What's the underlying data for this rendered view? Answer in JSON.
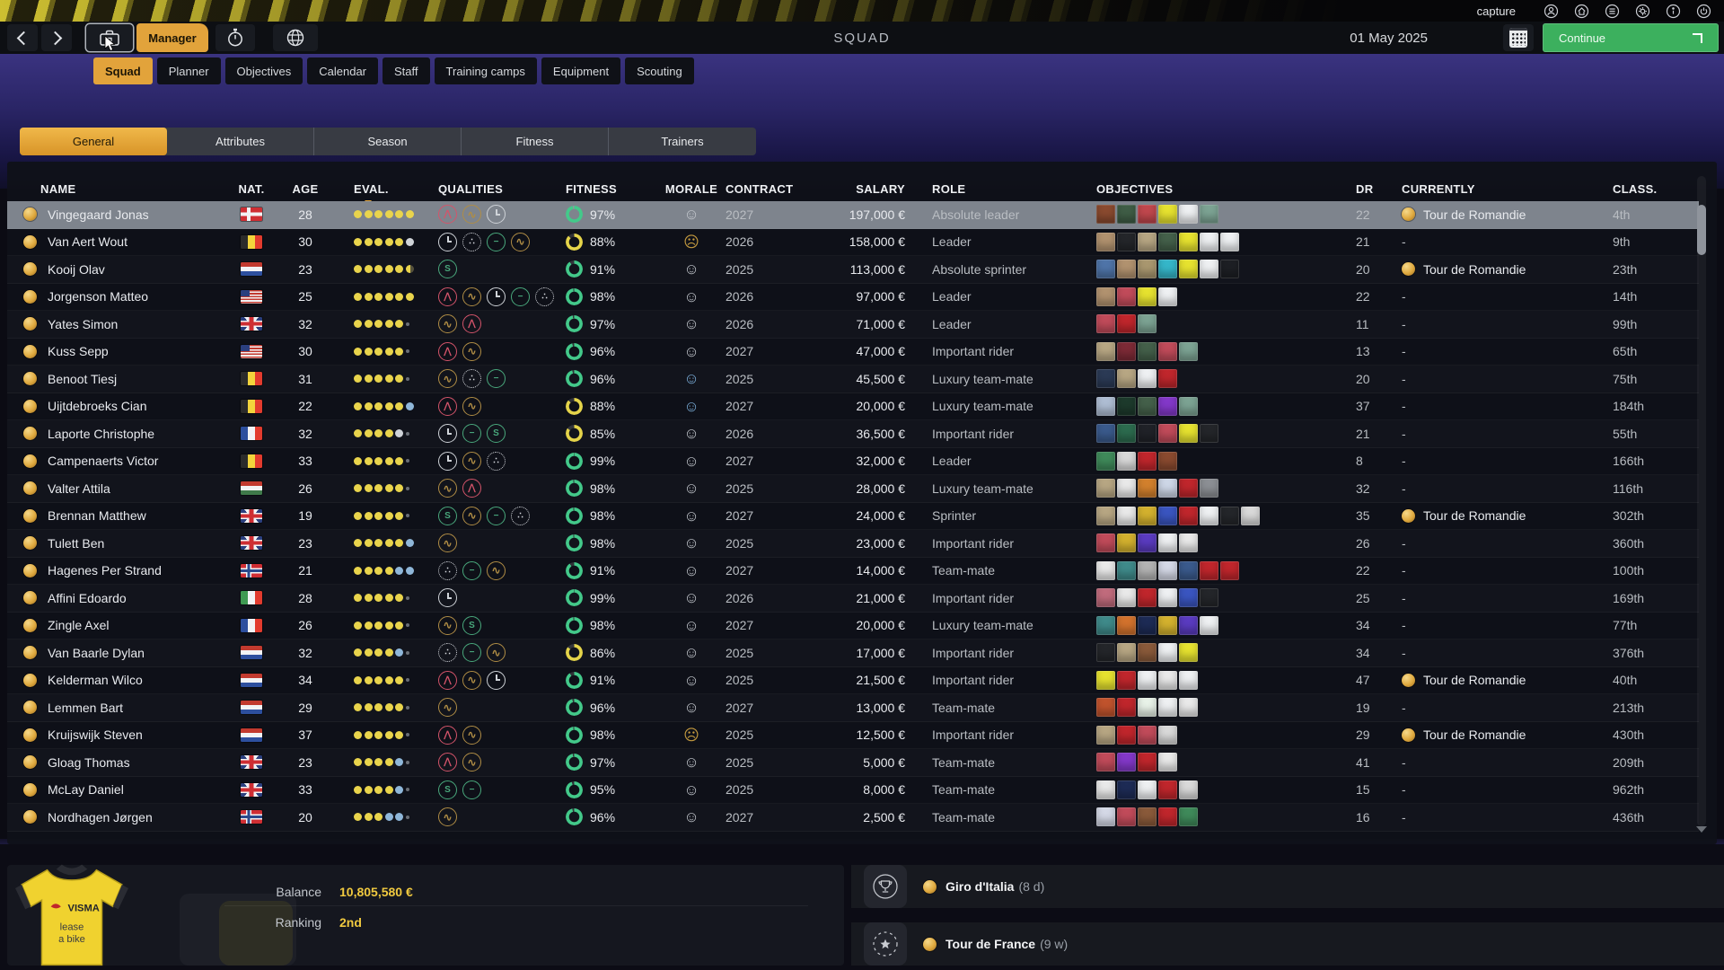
{
  "chrome": {
    "capture": "capture"
  },
  "navbar": {
    "title": "SQUAD",
    "manager": "Manager",
    "date": "01 May 2025",
    "continue_label": "Continue"
  },
  "system_icons": [
    "profile-icon",
    "home-icon",
    "menu-icon",
    "settings-icon",
    "info-icon",
    "power-icon"
  ],
  "tabs": {
    "items": [
      "Squad",
      "Planner",
      "Objectives",
      "Calendar",
      "Staff",
      "Training camps",
      "Equipment",
      "Scouting"
    ],
    "active": "Squad"
  },
  "subtabs": {
    "items": [
      "General",
      "Attributes",
      "Season",
      "Fitness",
      "Trainers"
    ],
    "active": "General"
  },
  "table": {
    "columns": [
      "NAME",
      "NAT.",
      "AGE",
      "EVAL.",
      "QUALITIES",
      "FITNESS",
      "MORALE",
      "CONTRACT",
      "SALARY",
      "ROLE",
      "OBJECTIVES",
      "DR",
      "CURRENTLY",
      "CLASS."
    ],
    "rows": [
      {
        "name": "Vingegaard Jonas",
        "nat": "dk",
        "age": 28,
        "ev": "yyyyyy",
        "q": [
          "mtn",
          "hill",
          "clock"
        ],
        "fit": 97,
        "mo": "s",
        "ct": "2027",
        "sal": "197,000 €",
        "role": "Absolute leader",
        "obj": [
          "#8a4a2f",
          "#3f5d46",
          "#c0474d",
          "#e6e22f",
          "#eef0f2",
          "#7ca393"
        ],
        "dr": 22,
        "cur": "Tour de Romandie",
        "cls": "4th",
        "sel": true
      },
      {
        "name": "Van Aert Wout",
        "nat": "be",
        "age": 30,
        "ev": "yyyyyw",
        "q": [
          "clock",
          "cob",
          "flat",
          "hill"
        ],
        "fit": 88,
        "mo": "f",
        "ct": "2026",
        "sal": "158,000 €",
        "role": "Leader",
        "obj": [
          "#b1926f",
          "#24262a",
          "#b7a683",
          "#44604a",
          "#e6e22f",
          "#eef0f2",
          "#eef0f2"
        ],
        "dr": 21,
        "cur": "-",
        "cls": "9th",
        "sel": false
      },
      {
        "name": "Kooij Olav",
        "nat": "nl",
        "age": 23,
        "ev": "yyyyyh",
        "q": [
          "spr"
        ],
        "fit": 91,
        "mo": "s",
        "ct": "2025",
        "sal": "113,000 €",
        "role": "Absolute sprinter",
        "obj": [
          "#4f74a8",
          "#b1926f",
          "#a9976f",
          "#35b6c9",
          "#e6e22f",
          "#eef0f2",
          "#1d1f24"
        ],
        "dr": 20,
        "cur": "Tour de Romandie",
        "cls": "23th",
        "sel": false
      },
      {
        "name": "Jorgenson Matteo",
        "nat": "us",
        "age": 25,
        "ev": "yyyyyy",
        "q": [
          "mtn",
          "hill",
          "clock",
          "flat",
          "cob"
        ],
        "fit": 98,
        "mo": "s",
        "ct": "2026",
        "sal": "97,000 €",
        "role": "Leader",
        "obj": [
          "#b1926f",
          "#c14b5a",
          "#e6e22f",
          "#eef0f2"
        ],
        "dr": 22,
        "cur": "-",
        "cls": "14th",
        "sel": false
      },
      {
        "name": "Yates Simon",
        "nat": "gb",
        "age": 32,
        "ev": "yyyyy.",
        "q": [
          "hill",
          "mtn"
        ],
        "fit": 97,
        "mo": "s",
        "ct": "2026",
        "sal": "71,000 €",
        "role": "Leader",
        "obj": [
          "#c14b5a",
          "#c0262c",
          "#7ca393"
        ],
        "dr": 11,
        "cur": "-",
        "cls": "99th",
        "sel": false
      },
      {
        "name": "Kuss Sepp",
        "nat": "us",
        "age": 30,
        "ev": "yyyyy.",
        "q": [
          "mtn",
          "hill"
        ],
        "fit": 96,
        "mo": "s",
        "ct": "2027",
        "sal": "47,000 €",
        "role": "Important rider",
        "obj": [
          "#b7a683",
          "#7d2a36",
          "#44604a",
          "#c14b5a",
          "#7ca393"
        ],
        "dr": 13,
        "cur": "-",
        "cls": "65th",
        "sel": false
      },
      {
        "name": "Benoot Tiesj",
        "nat": "be",
        "age": 31,
        "ev": "yyyyy.",
        "q": [
          "hill",
          "cob",
          "flat"
        ],
        "fit": 96,
        "mo": "b",
        "ct": "2025",
        "sal": "45,500 €",
        "role": "Luxury team-mate",
        "obj": [
          "#2b3a55",
          "#b7a683",
          "#eef0f2",
          "#c0262c"
        ],
        "dr": 20,
        "cur": "-",
        "cls": "75th",
        "sel": false
      },
      {
        "name": "Uijtdebroeks Cian",
        "nat": "be",
        "age": 22,
        "ev": "yyyyyb",
        "q": [
          "mtn",
          "hill"
        ],
        "fit": 88,
        "mo": "b",
        "ct": "2027",
        "sal": "20,000 €",
        "role": "Luxury team-mate",
        "obj": [
          "#aebdd3",
          "#1d3a2c",
          "#44604a",
          "#8338c9",
          "#7ca393"
        ],
        "dr": 37,
        "cur": "-",
        "cls": "184th",
        "sel": false
      },
      {
        "name": "Laporte Christophe",
        "nat": "fr",
        "age": 32,
        "ev": "yyyyw.",
        "q": [
          "clock",
          "flat",
          "spr"
        ],
        "fit": 85,
        "mo": "s",
        "ct": "2026",
        "sal": "36,500 €",
        "role": "Important rider",
        "obj": [
          "#3a5a8c",
          "#2c6b4e",
          "#202228",
          "#c14b5a",
          "#e6e22f",
          "#24262a"
        ],
        "dr": 21,
        "cur": "-",
        "cls": "55th",
        "sel": false
      },
      {
        "name": "Campenaerts Victor",
        "nat": "be",
        "age": 33,
        "ev": "yyyyy.",
        "q": [
          "clock",
          "hill",
          "cob"
        ],
        "fit": 99,
        "mo": "s",
        "ct": "2027",
        "sal": "32,000 €",
        "role": "Leader",
        "obj": [
          "#3f8a5a",
          "#d9d9d9",
          "#c0262c",
          "#8a4a2f"
        ],
        "dr": 8,
        "cur": "-",
        "cls": "166th",
        "sel": false
      },
      {
        "name": "Valter Attila",
        "nat": "hu",
        "age": 26,
        "ev": "yyyyy.",
        "q": [
          "hill",
          "mtn"
        ],
        "fit": 98,
        "mo": "s",
        "ct": "2025",
        "sal": "28,000 €",
        "role": "Luxury team-mate",
        "obj": [
          "#b7a683",
          "#e9e9e9",
          "#d2802d",
          "#cdd6e6",
          "#c0262c",
          "#8c8f94"
        ],
        "dr": 32,
        "cur": "-",
        "cls": "116th",
        "sel": false
      },
      {
        "name": "Brennan Matthew",
        "nat": "gb",
        "age": 19,
        "ev": "yyyyy.",
        "q": [
          "spr",
          "hill",
          "flat",
          "cob"
        ],
        "fit": 98,
        "mo": "s",
        "ct": "2027",
        "sal": "24,000 €",
        "role": "Sprinter",
        "obj": [
          "#b7a683",
          "#e9e9e9",
          "#d3b12e",
          "#3a55c0",
          "#c0262c",
          "#eef0f2",
          "#24262a",
          "#d9d9d9"
        ],
        "dr": 35,
        "cur": "Tour de Romandie",
        "cls": "302th",
        "sel": false
      },
      {
        "name": "Tulett Ben",
        "nat": "gb",
        "age": 23,
        "ev": "yyyyyb",
        "q": [
          "hill"
        ],
        "fit": 98,
        "mo": "s",
        "ct": "2025",
        "sal": "23,000 €",
        "role": "Important rider",
        "obj": [
          "#c14b5a",
          "#d3b12e",
          "#5a3bc0",
          "#eef0f2",
          "#e9e9e9"
        ],
        "dr": 26,
        "cur": "-",
        "cls": "360th",
        "sel": false
      },
      {
        "name": "Hagenes Per Strand",
        "nat": "no",
        "age": 21,
        "ev": "yyyybb",
        "q": [
          "cob",
          "flat",
          "hill"
        ],
        "fit": 91,
        "mo": "s",
        "ct": "2027",
        "sal": "14,000 €",
        "role": "Team-mate",
        "obj": [
          "#e9e9e9",
          "#3f8a8a",
          "#b3b3b3",
          "#d4d8e6",
          "#3a5a8c",
          "#c0262c",
          "#c0262c"
        ],
        "dr": 22,
        "cur": "-",
        "cls": "100th",
        "sel": false
      },
      {
        "name": "Affini Edoardo",
        "nat": "it",
        "age": 28,
        "ev": "yyyyy.",
        "q": [
          "clock"
        ],
        "fit": 99,
        "mo": "s",
        "ct": "2026",
        "sal": "21,000 €",
        "role": "Important rider",
        "obj": [
          "#c06b7c",
          "#e9e9e9",
          "#c0262c",
          "#eef0f2",
          "#3a55c0",
          "#24262a"
        ],
        "dr": 25,
        "cur": "-",
        "cls": "169th",
        "sel": false
      },
      {
        "name": "Zingle Axel",
        "nat": "fr",
        "age": 26,
        "ev": "yyyyy.",
        "q": [
          "hill",
          "spr"
        ],
        "fit": 98,
        "mo": "s",
        "ct": "2027",
        "sal": "20,000 €",
        "role": "Luxury team-mate",
        "obj": [
          "#3f8a8a",
          "#d2722d",
          "#1d2b55",
          "#d3b12e",
          "#5a3bc0",
          "#eef0f2"
        ],
        "dr": 34,
        "cur": "-",
        "cls": "77th",
        "sel": false
      },
      {
        "name": "Van Baarle Dylan",
        "nat": "nl",
        "age": 32,
        "ev": "yyyyb.",
        "q": [
          "cob",
          "flat",
          "hill"
        ],
        "fit": 86,
        "mo": "s",
        "ct": "2025",
        "sal": "17,000 €",
        "role": "Important rider",
        "obj": [
          "#24262a",
          "#b7a683",
          "#8a5a3a",
          "#eef0f2",
          "#e6e22f"
        ],
        "dr": 34,
        "cur": "-",
        "cls": "376th",
        "sel": false
      },
      {
        "name": "Kelderman Wilco",
        "nat": "nl",
        "age": 34,
        "ev": "yyyyy.",
        "q": [
          "mtn",
          "hill",
          "clock"
        ],
        "fit": 91,
        "mo": "s",
        "ct": "2025",
        "sal": "21,500 €",
        "role": "Important rider",
        "obj": [
          "#e6e22f",
          "#c0262c",
          "#eef0f2",
          "#e9e9e9",
          "#eef0f2"
        ],
        "dr": 47,
        "cur": "Tour de Romandie",
        "cls": "40th",
        "sel": false
      },
      {
        "name": "Lemmen Bart",
        "nat": "nl",
        "age": 29,
        "ev": "yyyyy.",
        "q": [
          "hill"
        ],
        "fit": 96,
        "mo": "s",
        "ct": "2027",
        "sal": "13,000 €",
        "role": "Team-mate",
        "obj": [
          "#c0532d",
          "#c0262c",
          "#e8f2e8",
          "#eef0f2",
          "#e9e9e9"
        ],
        "dr": 19,
        "cur": "-",
        "cls": "213th",
        "sel": false
      },
      {
        "name": "Kruijswijk Steven",
        "nat": "nl",
        "age": 37,
        "ev": "yyyyy.",
        "q": [
          "mtn",
          "hill"
        ],
        "fit": 98,
        "mo": "f",
        "ct": "2025",
        "sal": "12,500 €",
        "role": "Important rider",
        "obj": [
          "#b7a683",
          "#c0262c",
          "#c14b5a",
          "#d9d9d9"
        ],
        "dr": 29,
        "cur": "Tour de Romandie",
        "cls": "430th",
        "sel": false
      },
      {
        "name": "Gloag Thomas",
        "nat": "gb",
        "age": 23,
        "ev": "yyyyb.",
        "q": [
          "mtn",
          "hill"
        ],
        "fit": 97,
        "mo": "s",
        "ct": "2025",
        "sal": "5,000 €",
        "role": "Team-mate",
        "obj": [
          "#c14b5a",
          "#8338c9",
          "#c0262c",
          "#e9e9e9"
        ],
        "dr": 41,
        "cur": "-",
        "cls": "209th",
        "sel": false
      },
      {
        "name": "McLay Daniel",
        "nat": "gb",
        "age": 33,
        "ev": "yyyyb.",
        "q": [
          "spr",
          "flat"
        ],
        "fit": 95,
        "mo": "s",
        "ct": "2025",
        "sal": "8,000 €",
        "role": "Team-mate",
        "obj": [
          "#e9e9e9",
          "#1d2b55",
          "#eef0f2",
          "#c0262c",
          "#d9d9d9"
        ],
        "dr": 15,
        "cur": "-",
        "cls": "962th",
        "sel": false
      },
      {
        "name": "Nordhagen Jørgen",
        "nat": "no",
        "age": 20,
        "ev": "yyybb.",
        "q": [
          "hill"
        ],
        "fit": 96,
        "mo": "s",
        "ct": "2027",
        "sal": "2,500 €",
        "role": "Team-mate",
        "obj": [
          "#d4d8e6",
          "#c14b5a",
          "#8a5a3a",
          "#c0262c",
          "#3f8a5a"
        ],
        "dr": 16,
        "cur": "-",
        "cls": "436th",
        "sel": false
      }
    ]
  },
  "footer": {
    "balance_label": "Balance",
    "balance_value": "10,805,580 €",
    "ranking_label": "Ranking",
    "ranking_value": "2nd",
    "jersey": {
      "line1": "VISMA",
      "line2": "lease",
      "line3": "a bike"
    },
    "events": [
      {
        "icon": "trophy-icon",
        "name": "Giro d'Italia",
        "suffix": "(8 d)"
      },
      {
        "icon": "star-icon",
        "name": "Tour de France",
        "suffix": "(9 w)"
      }
    ]
  },
  "colors": {
    "accent_orange": "#e2a33b",
    "continue_green": "#3cb05e",
    "eval_yellow": "#e9d44c",
    "fit_green": "#43c98a",
    "fit_yellow": "#e5d44a",
    "balance_yellow": "#f0c93f"
  }
}
